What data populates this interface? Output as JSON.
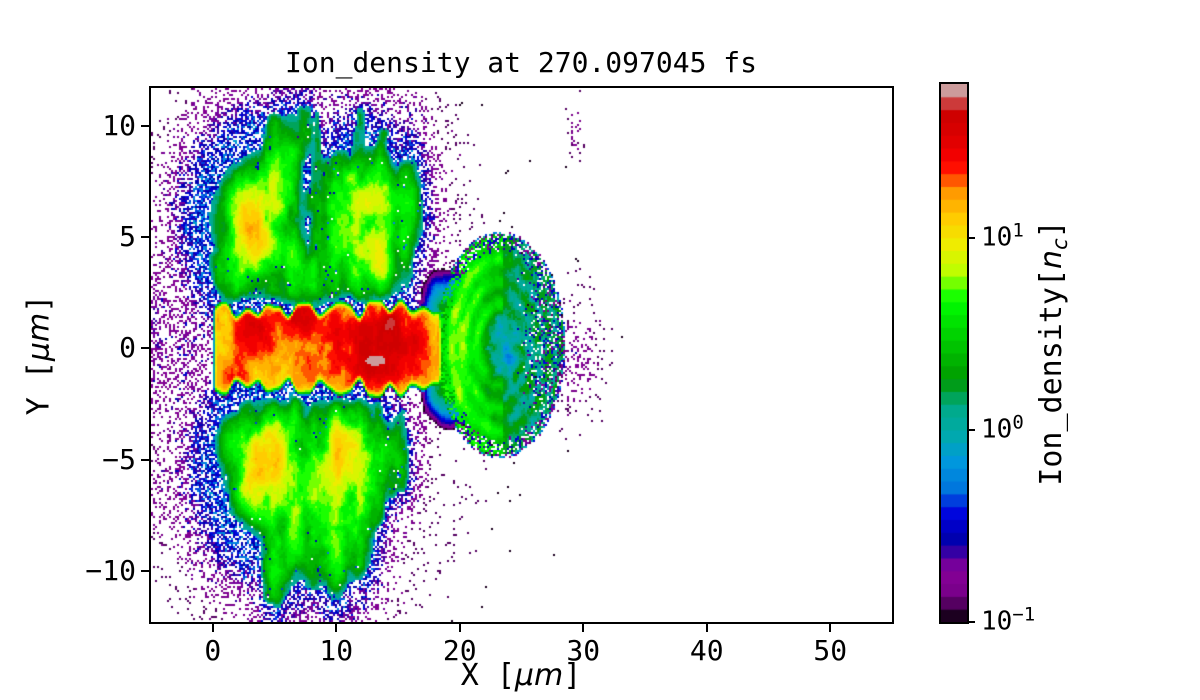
{
  "colors": {
    "background": "#ffffff",
    "text": "#000000",
    "spine": "#000000"
  },
  "chart_data": {
    "type": "heatmap",
    "title": "Ion_density at 270.097045 fs",
    "xlabel": "X [μm]",
    "ylabel": "Y [μm]",
    "xlim": [
      -5,
      55
    ],
    "ylim": [
      -12.3,
      11.7
    ],
    "grid": false,
    "xticks": {
      "values": [
        0,
        10,
        20,
        30,
        40,
        50
      ],
      "labels": [
        "0",
        "10",
        "20",
        "30",
        "40",
        "50"
      ]
    },
    "yticks": {
      "values": [
        -10,
        -5,
        0,
        5,
        10
      ],
      "labels": [
        "−10",
        "−5",
        "0",
        "5",
        "10"
      ]
    },
    "labels": {
      "xlabel_pre": "X [",
      "xlabel_unit": "μm",
      "xlabel_post": "]",
      "ylabel_pre": "Y [",
      "ylabel_unit": "μm",
      "ylabel_post": "]",
      "cbar_pre": "Ion_density[",
      "cbar_var": "n",
      "cbar_sub": "c",
      "cbar_post": "]"
    },
    "colorbar": {
      "label": "Ion_density[n_c]",
      "scale": "log",
      "vmin": 0.1,
      "vmax": 63.1,
      "levels": 42,
      "colormap": "nipy_spectral",
      "ticks": {
        "values": [
          10,
          1,
          0.1
        ],
        "bases": [
          "10",
          "10",
          "10"
        ],
        "exponents": [
          "1",
          "0",
          "−1"
        ]
      }
    },
    "colormap_anchors": [
      [
        0.0,
        0.0,
        0.0,
        0.0
      ],
      [
        0.05,
        0.4667,
        0.0,
        0.5333
      ],
      [
        0.1,
        0.5333,
        0.0,
        0.6
      ],
      [
        0.15,
        0.0,
        0.0,
        0.6667
      ],
      [
        0.2,
        0.0,
        0.0,
        0.8667
      ],
      [
        0.25,
        0.0,
        0.4667,
        0.8667
      ],
      [
        0.3,
        0.0,
        0.6,
        0.8667
      ],
      [
        0.35,
        0.0,
        0.6667,
        0.6667
      ],
      [
        0.4,
        0.0,
        0.6667,
        0.5333
      ],
      [
        0.45,
        0.0,
        0.6,
        0.0
      ],
      [
        0.5,
        0.0,
        0.7333,
        0.0
      ],
      [
        0.55,
        0.0,
        0.8667,
        0.0
      ],
      [
        0.6,
        0.0,
        1.0,
        0.0
      ],
      [
        0.65,
        0.7333,
        1.0,
        0.0
      ],
      [
        0.7,
        0.9333,
        0.9333,
        0.0
      ],
      [
        0.75,
        1.0,
        0.8,
        0.0
      ],
      [
        0.8,
        1.0,
        0.6,
        0.0
      ],
      [
        0.85,
        1.0,
        0.0,
        0.0
      ],
      [
        0.9,
        0.8667,
        0.0,
        0.0
      ],
      [
        0.95,
        0.8,
        0.0,
        0.0
      ],
      [
        1.0,
        0.8,
        0.8,
        0.8
      ]
    ],
    "field": {
      "core": {
        "x0": 0.0,
        "x1": 18.6,
        "y_halfwidth": 2.0,
        "edge_wobble": 0.55,
        "base_min": 6,
        "base_span": 16,
        "hotspots": [
          [
            12.6,
            -0.1,
            2.83,
            0.98,
            30
          ],
          [
            3.4,
            0.9,
            1.14,
            0.74,
            20
          ],
          [
            7.0,
            1.5,
            0.85,
            0.5,
            22
          ],
          [
            2.2,
            -1.3,
            0.64,
            0.5,
            20
          ],
          [
            14.6,
            1.0,
            1.22,
            0.64,
            20
          ]
        ],
        "peak": {
          "x": 13.2,
          "y": -0.55,
          "rx": 0.8,
          "ry": 0.22,
          "value": 70
        }
      },
      "neck": {
        "x": 19.2,
        "spread": 2.2,
        "y_halfwidth": 2.7,
        "amp": 3.5
      },
      "dome": {
        "cx": 23.3,
        "cy": 0.15,
        "rx": 5.35,
        "ry": 5.15,
        "base": 0.4,
        "noise_amp": 1.3,
        "arcs": [
          0.35,
          0.55,
          0.75,
          0.93
        ],
        "arc_amp": 2.6,
        "cap": {
          "cx": 20.0,
          "cy": 0.0,
          "varx": 2.8,
          "vary": 14,
          "amp": 4.2
        },
        "cap2": {
          "r_y": 3.8,
          "amp": 2.0
        }
      },
      "blobs": [
        [
          3.6,
          5.5,
          2.0,
          1.7,
          6
        ],
        [
          3.3,
          4.7,
          0.8,
          0.7,
          9
        ],
        [
          3.1,
          6.3,
          0.9,
          0.9,
          7
        ],
        [
          12.4,
          5.3,
          1.7,
          1.9,
          4.5
        ],
        [
          13.5,
          4.3,
          0.7,
          0.8,
          6
        ],
        [
          13.2,
          7.0,
          0.8,
          0.9,
          5
        ],
        [
          7.6,
          3.3,
          1.4,
          1.0,
          3
        ],
        [
          10.6,
          6.4,
          0.9,
          1.6,
          3.4
        ],
        [
          15.8,
          6.5,
          0.8,
          1.4,
          3
        ],
        [
          5.6,
          8.3,
          0.8,
          1.5,
          2.6
        ],
        [
          7.1,
          9.8,
          0.7,
          1.2,
          2.0
        ],
        [
          1.0,
          3.4,
          0.8,
          0.9,
          2.5
        ],
        [
          5.0,
          -5.4,
          2.2,
          1.7,
          6
        ],
        [
          4.5,
          -4.9,
          0.8,
          0.8,
          11
        ],
        [
          3.4,
          -6.3,
          0.9,
          0.8,
          6
        ],
        [
          9.6,
          -6.0,
          1.6,
          2.0,
          4.5
        ],
        [
          10.4,
          -4.4,
          0.8,
          0.8,
          6
        ],
        [
          12.3,
          -4.9,
          1.1,
          1.2,
          5
        ],
        [
          9.8,
          -8.8,
          0.9,
          1.5,
          3
        ],
        [
          12.0,
          -7.5,
          0.8,
          1.6,
          3.2
        ],
        [
          6.6,
          -8.7,
          0.9,
          1.4,
          2.6
        ],
        [
          5.0,
          -10.3,
          0.7,
          1.2,
          2.2
        ],
        [
          14.6,
          -5.0,
          0.8,
          1.0,
          2.6
        ],
        [
          1.8,
          -4.2,
          0.9,
          0.8,
          3
        ]
      ],
      "streamers": [
        [
          4.8,
          2,
          10.8,
          0.45,
          1.5
        ],
        [
          6.4,
          2,
          9.6,
          0.4,
          1.3
        ],
        [
          8.3,
          2,
          11.2,
          0.5,
          1.2
        ],
        [
          9.8,
          2,
          9.0,
          0.4,
          1.4
        ],
        [
          11.3,
          2,
          8.2,
          0.45,
          1.6
        ],
        [
          11.9,
          2,
          11.3,
          0.4,
          1.1
        ],
        [
          13.8,
          2,
          10.4,
          0.4,
          1.3
        ],
        [
          15.6,
          2,
          8.6,
          0.5,
          1.2
        ],
        [
          2.2,
          2,
          7.6,
          0.5,
          1.3
        ],
        [
          4.9,
          -11.8,
          -2,
          0.5,
          1.5
        ],
        [
          6.6,
          -10.2,
          -2,
          0.4,
          1.3
        ],
        [
          8.2,
          -11.4,
          -2,
          0.45,
          1.2
        ],
        [
          10.1,
          -11.0,
          -2,
          0.5,
          1.5
        ],
        [
          11.8,
          -10.6,
          -2,
          0.45,
          1.6
        ],
        [
          13.4,
          -8.4,
          -2,
          0.4,
          1.2
        ],
        [
          15.2,
          -7.0,
          -2,
          0.45,
          1.1
        ],
        [
          2.6,
          -8.0,
          -2,
          0.5,
          1.2
        ]
      ],
      "speckle_envelopes": [
        [
          7,
          6.5,
          70,
          16,
          0.5
        ],
        [
          7.5,
          -7,
          60,
          20,
          0.55
        ],
        [
          -2,
          0,
          7,
          24,
          0.5
        ],
        [
          -4.5,
          0.5,
          1.8,
          20,
          0.55
        ],
        [
          -4.0,
          -6.5,
          2.0,
          6,
          0.35
        ],
        [
          29.6,
          -0.5,
          2.5,
          5,
          0.38
        ],
        [
          29.3,
          10,
          0.4,
          1.5,
          0.3
        ],
        [
          16.5,
          3.2,
          4,
          1.5,
          0.55
        ],
        [
          16,
          -3.4,
          4,
          1.7,
          0.5
        ],
        [
          8,
          2.6,
          45,
          0.5,
          0.6
        ],
        [
          8,
          -2.7,
          45,
          0.55,
          0.6
        ]
      ]
    }
  }
}
